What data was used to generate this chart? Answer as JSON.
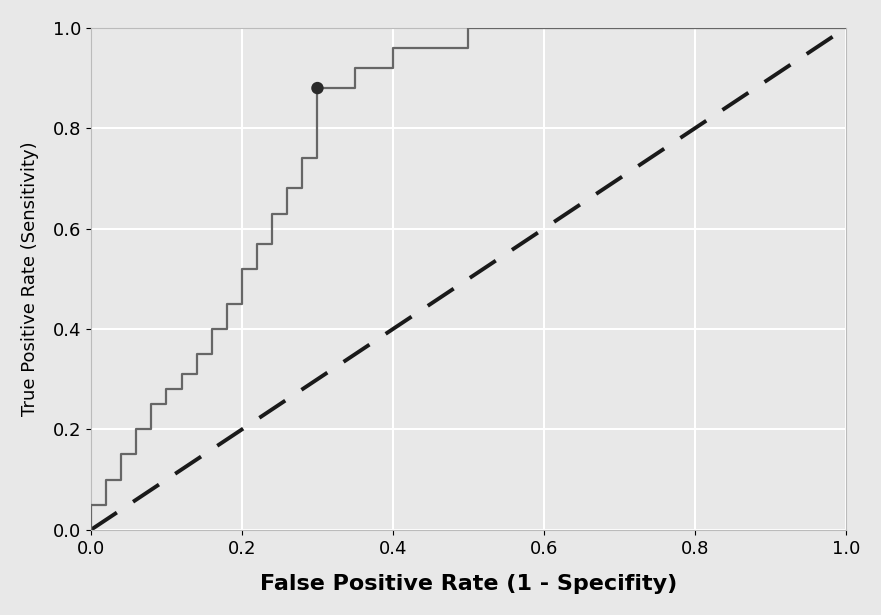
{
  "xlabel": "False Positive Rate (1 - Specifity)",
  "ylabel": "True Positive Rate (Sensitivity)",
  "roc_fpr": [
    0.0,
    0.0,
    0.0,
    0.02,
    0.02,
    0.02,
    0.02,
    0.04,
    0.04,
    0.04,
    0.04,
    0.06,
    0.06,
    0.06,
    0.06,
    0.08,
    0.08,
    0.08,
    0.08,
    0.1,
    0.1,
    0.1,
    0.1,
    0.12,
    0.12,
    0.12,
    0.12,
    0.14,
    0.14,
    0.14,
    0.14,
    0.16,
    0.16,
    0.16,
    0.16,
    0.18,
    0.18,
    0.18,
    0.18,
    0.2,
    0.2,
    0.2,
    0.2,
    0.22,
    0.22,
    0.22,
    0.22,
    0.24,
    0.24,
    0.24,
    0.24,
    0.26,
    0.26,
    0.26,
    0.26,
    0.28,
    0.28,
    0.28,
    0.28,
    0.3,
    0.3,
    0.3,
    0.3,
    0.35,
    0.35,
    0.35,
    0.35,
    0.4,
    0.4,
    0.4,
    0.4,
    0.5,
    0.5,
    0.5,
    0.5,
    1.0,
    1.0,
    1.0
  ],
  "roc_tpr": [
    0.0,
    0.05,
    0.05,
    0.05,
    0.05,
    0.1,
    0.1,
    0.1,
    0.1,
    0.15,
    0.15,
    0.15,
    0.15,
    0.2,
    0.2,
    0.2,
    0.2,
    0.25,
    0.25,
    0.25,
    0.25,
    0.28,
    0.28,
    0.28,
    0.28,
    0.31,
    0.31,
    0.31,
    0.31,
    0.35,
    0.35,
    0.35,
    0.35,
    0.4,
    0.4,
    0.4,
    0.4,
    0.45,
    0.45,
    0.45,
    0.45,
    0.52,
    0.52,
    0.52,
    0.52,
    0.57,
    0.57,
    0.57,
    0.57,
    0.63,
    0.63,
    0.63,
    0.63,
    0.68,
    0.68,
    0.68,
    0.68,
    0.74,
    0.74,
    0.74,
    0.74,
    0.88,
    0.88,
    0.88,
    0.88,
    0.92,
    0.92,
    0.92,
    0.92,
    0.96,
    0.96,
    0.96,
    0.96,
    1.0,
    1.0,
    1.0,
    1.0,
    1.0
  ],
  "optimal_fpr": 0.3,
  "optimal_tpr": 0.88,
  "roc_color": "#666666",
  "roc_linewidth": 1.6,
  "diag_color": "#1a1a1a",
  "diag_linewidth": 2.8,
  "dot_color": "#2a2a2a",
  "dot_size": 80,
  "background_color": "#e8e8e8",
  "grid_color": "#ffffff",
  "xlabel_fontsize": 16,
  "ylabel_fontsize": 13,
  "tick_fontsize": 13,
  "xlim": [
    0,
    1
  ],
  "ylim": [
    0,
    1
  ],
  "xticks": [
    0,
    0.2,
    0.4,
    0.6,
    0.8,
    1.0
  ],
  "yticks": [
    0,
    0.2,
    0.4,
    0.6,
    0.8,
    1.0
  ]
}
